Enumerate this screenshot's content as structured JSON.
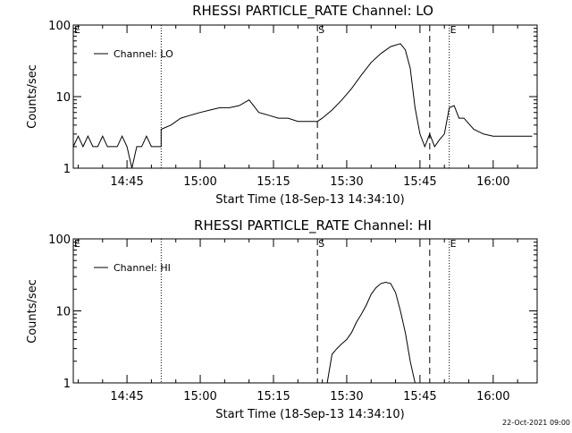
{
  "footer": {
    "timestamp": "22-Oct-2021 09:00"
  },
  "chart_data": [
    {
      "type": "line",
      "title": "RHESSI PARTICLE_RATE Channel: LO",
      "xlabel": "Start Time (18-Sep-13 14:34:10)",
      "ylabel": "Counts/sec",
      "y_scale": "log",
      "ylim": [
        1,
        100
      ],
      "y_ticks": [
        "1",
        "10",
        "100"
      ],
      "xlim": [
        "14:34",
        "16:09"
      ],
      "x_ticks": [
        "14:45",
        "15:00",
        "15:15",
        "15:30",
        "15:45",
        "16:00"
      ],
      "legend": {
        "position": "top-left",
        "label": "Channel: LO"
      },
      "markers": [
        {
          "label": "E",
          "time": "14:34",
          "style": "dotted"
        },
        {
          "label": "",
          "time": "14:52",
          "style": "dotted"
        },
        {
          "label": "S",
          "time": "15:24",
          "style": "dashed"
        },
        {
          "label": "",
          "time": "15:47",
          "style": "dashed"
        },
        {
          "label": "E",
          "time": "15:51",
          "style": "dotted"
        },
        {
          "label": "",
          "time": "16:09",
          "style": "dotted"
        }
      ],
      "series": [
        {
          "name": "Channel: LO",
          "x": [
            "14:34",
            "14:35",
            "14:36",
            "14:37",
            "14:38",
            "14:39",
            "14:40",
            "14:41",
            "14:42",
            "14:43",
            "14:44",
            "14:45",
            "14:46",
            "14:47",
            "14:48",
            "14:49",
            "14:50",
            "14:51",
            "14:52",
            "14:52",
            "14:54",
            "14:56",
            "14:58",
            "15:00",
            "15:02",
            "15:04",
            "15:06",
            "15:08",
            "15:10",
            "15:12",
            "15:14",
            "15:16",
            "15:18",
            "15:20",
            "15:22",
            "15:24",
            "15:25",
            "15:27",
            "15:29",
            "15:31",
            "15:33",
            "15:35",
            "15:37",
            "15:39",
            "15:41",
            "15:42",
            "15:43",
            "15:44",
            "15:45",
            "15:46",
            "15:47",
            "15:48",
            "15:49",
            "15:50",
            "15:51",
            "15:52",
            "15:53",
            "15:54",
            "15:56",
            "15:58",
            "16:00",
            "16:02",
            "16:04",
            "16:06",
            "16:08"
          ],
          "y": [
            2,
            2.8,
            2,
            2.8,
            2,
            2,
            2.8,
            2,
            2,
            2,
            2.8,
            2,
            1,
            2,
            2,
            2.8,
            2,
            2,
            2,
            3.5,
            4,
            5,
            5.5,
            6,
            6.5,
            7,
            7,
            7.5,
            9,
            6,
            5.5,
            5,
            5,
            4.5,
            4.5,
            4.5,
            5,
            6.5,
            9,
            13,
            20,
            30,
            40,
            50,
            55,
            45,
            25,
            7,
            3,
            2,
            3,
            2,
            2.5,
            3,
            7,
            7.5,
            5,
            5,
            3.5,
            3,
            2.8,
            2.8,
            2.8,
            2.8,
            2.8
          ]
        }
      ]
    },
    {
      "type": "line",
      "title": "RHESSI PARTICLE_RATE Channel: HI",
      "xlabel": "Start Time (18-Sep-13 14:34:10)",
      "ylabel": "Counts/sec",
      "y_scale": "log",
      "ylim": [
        1,
        100
      ],
      "y_ticks": [
        "1",
        "10",
        "100"
      ],
      "xlim": [
        "14:34",
        "16:09"
      ],
      "x_ticks": [
        "14:45",
        "15:00",
        "15:15",
        "15:30",
        "15:45",
        "16:00"
      ],
      "legend": {
        "position": "top-left",
        "label": "Channel: HI"
      },
      "markers": [
        {
          "label": "E",
          "time": "14:34",
          "style": "dotted"
        },
        {
          "label": "",
          "time": "14:52",
          "style": "dotted"
        },
        {
          "label": "S",
          "time": "15:24",
          "style": "dashed"
        },
        {
          "label": "",
          "time": "15:47",
          "style": "dashed"
        },
        {
          "label": "E",
          "time": "15:51",
          "style": "dotted"
        },
        {
          "label": "",
          "time": "16:09",
          "style": "dotted"
        }
      ],
      "series": [
        {
          "name": "Channel: HI",
          "x": [
            "15:26",
            "15:27",
            "15:28",
            "15:29",
            "15:30",
            "15:31",
            "15:32",
            "15:33",
            "15:34",
            "15:35",
            "15:36",
            "15:37",
            "15:38",
            "15:39",
            "15:40",
            "15:41",
            "15:42",
            "15:43",
            "15:44"
          ],
          "y": [
            1,
            2.5,
            3,
            3.5,
            4,
            5,
            7,
            9,
            12,
            17,
            21,
            24,
            25,
            24,
            18,
            10,
            5,
            2,
            1
          ]
        }
      ]
    }
  ]
}
